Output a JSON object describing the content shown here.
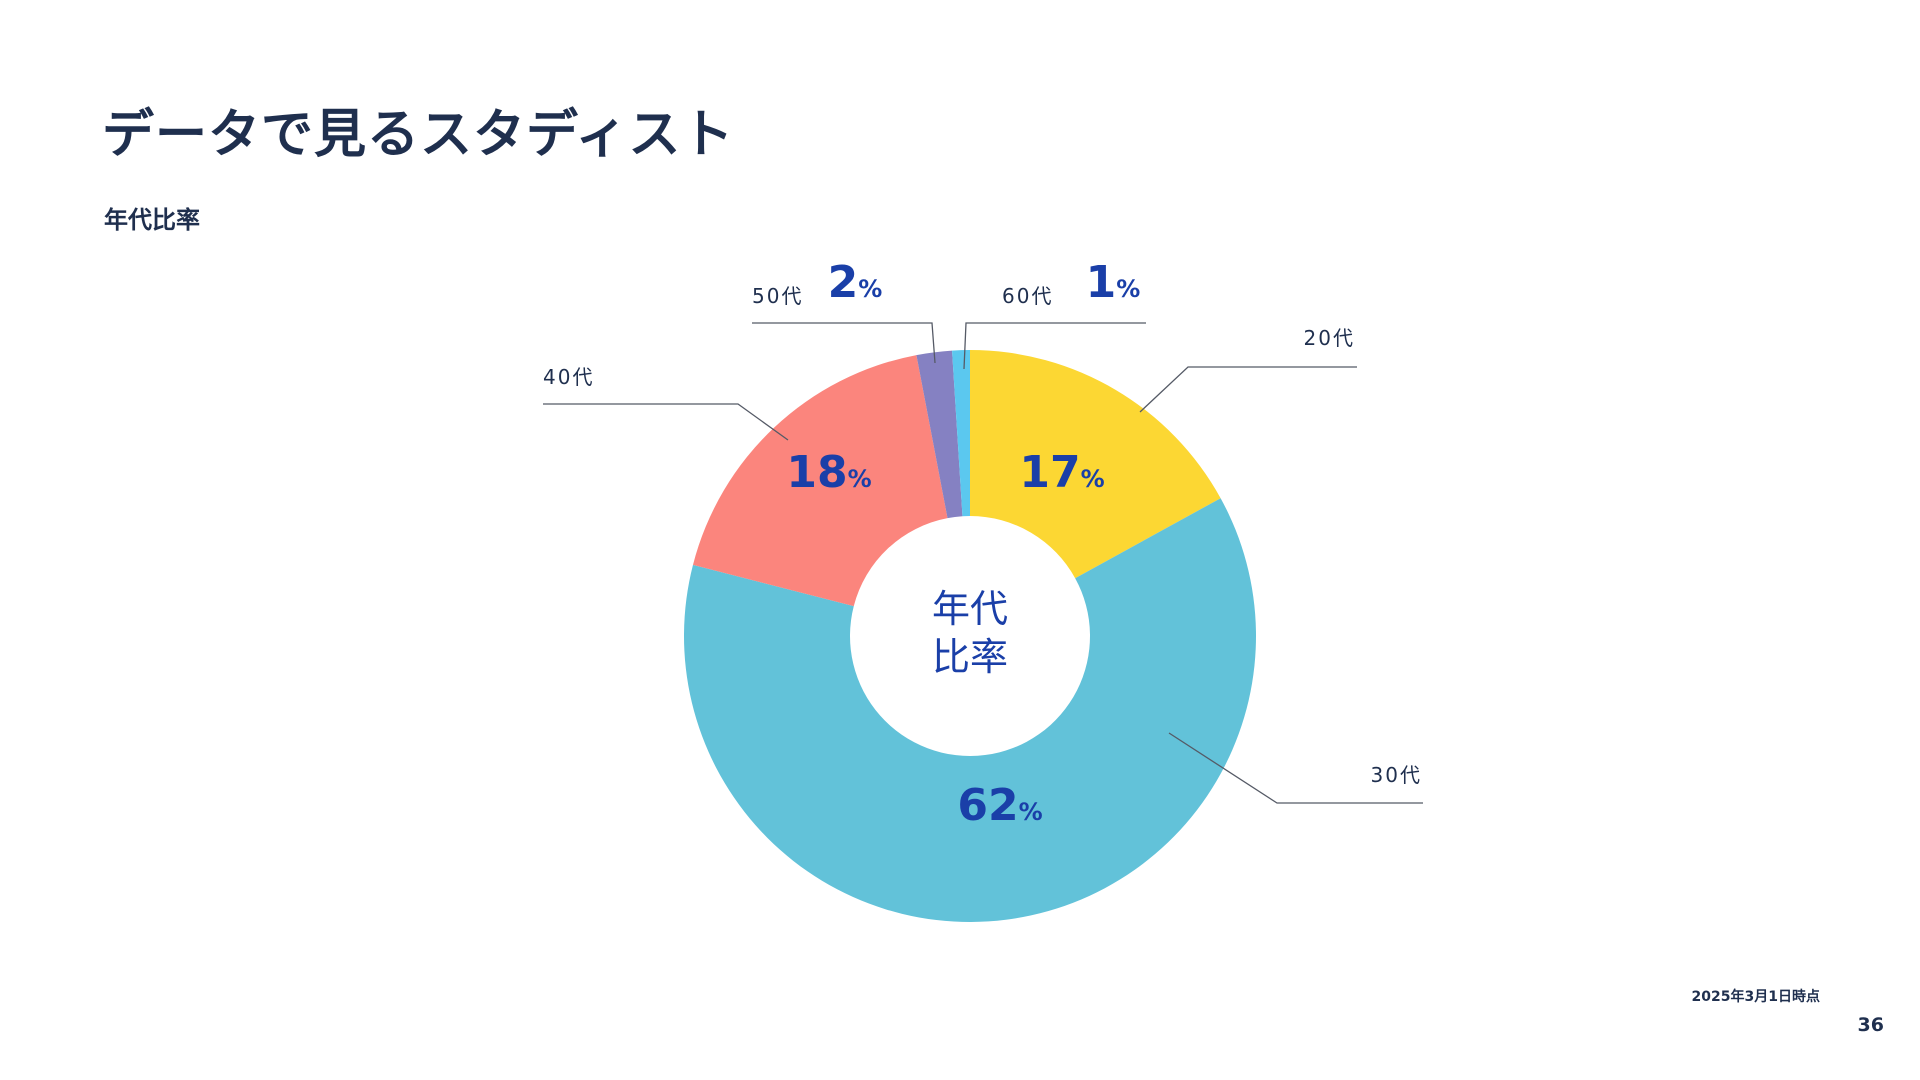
{
  "title": "データで見るスタディスト",
  "section_label": "年代比率",
  "center_label_line1": "年代",
  "center_label_line2": "比率",
  "footnote": "2025年3月1日時点",
  "page_number": "36",
  "colors": {
    "text": "#1f2f4e",
    "value_text": "#1a3fa8",
    "leader_line": "#555a66"
  },
  "chart_data": {
    "type": "pie",
    "donut": true,
    "title": "年代比率",
    "unit": "%",
    "categories": [
      "20代",
      "30代",
      "40代",
      "50代",
      "60代"
    ],
    "values": [
      17,
      62,
      18,
      2,
      1
    ],
    "colors": [
      "#fcd733",
      "#62c2d9",
      "#fb857d",
      "#8581c2",
      "#5bc8ef"
    ],
    "labels": [
      "17",
      "62",
      "18",
      "2",
      "1"
    ]
  }
}
